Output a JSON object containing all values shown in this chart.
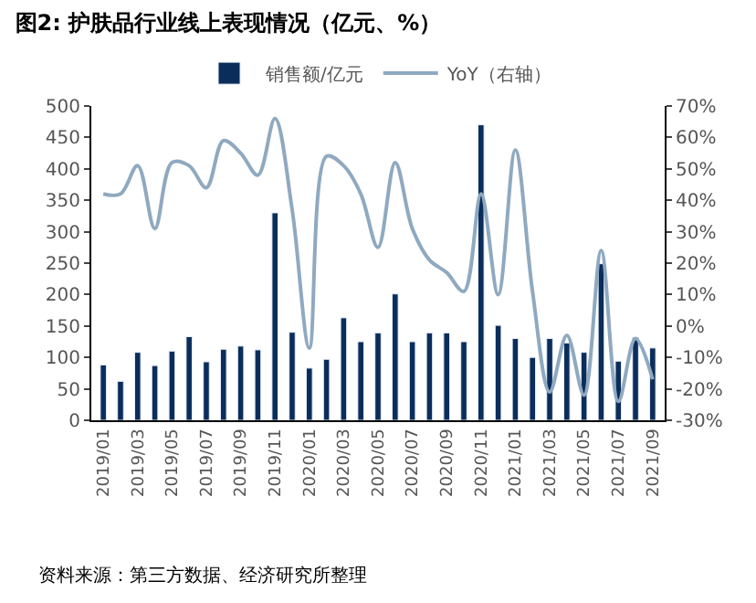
{
  "chart_data": {
    "type": "bar",
    "title": "图2: 护肤品行业线上表现情况（亿元、%）",
    "categories": [
      "2019/01",
      null,
      "2019/03",
      null,
      "2019/05",
      null,
      "2019/07",
      null,
      "2019/09",
      null,
      "2019/11",
      null,
      "2020/01",
      null,
      "2020/03",
      null,
      "2020/05",
      null,
      "2020/07",
      null,
      "2020/09",
      null,
      "2020/11",
      null,
      "2021/01",
      null,
      "2021/03",
      null,
      "2021/05",
      null,
      "2021/07",
      null,
      "2021/09"
    ],
    "series": [
      {
        "name": "销售额/亿元",
        "color": "#0b2d5b",
        "values": [
          88,
          62,
          108,
          87,
          110,
          133,
          93,
          113,
          118,
          112,
          330,
          140,
          83,
          97,
          163,
          125,
          139,
          201,
          125,
          139,
          139,
          125,
          470,
          151,
          130,
          100,
          130,
          123,
          108,
          249,
          94,
          132,
          115
        ]
      },
      {
        "name": "YoY（右轴）",
        "type": "line",
        "axis": "y2",
        "color": "#8fa9c0",
        "values": [
          42,
          42,
          51,
          31,
          52,
          51,
          44,
          59,
          55,
          48,
          66,
          37,
          -7,
          54,
          51,
          42,
          25,
          52,
          31,
          21,
          17,
          11,
          42,
          10,
          56,
          11,
          -21,
          -3,
          -22,
          24,
          -24,
          -4,
          -17
        ]
      }
    ],
    "ylim": [
      0,
      500
    ],
    "yticks": [
      0,
      50,
      100,
      150,
      200,
      250,
      300,
      350,
      400,
      450,
      500
    ],
    "y2lim": [
      -30,
      70
    ],
    "y2ticks": [
      {
        "value": -30,
        "label": "-30%"
      },
      {
        "value": -20,
        "label": "-20%"
      },
      {
        "value": -10,
        "label": "-10%"
      },
      {
        "value": 0,
        "label": "0%"
      },
      {
        "value": 10,
        "label": "10%"
      },
      {
        "value": 20,
        "label": "20%"
      },
      {
        "value": 30,
        "label": "30%"
      },
      {
        "value": 40,
        "label": "40%"
      },
      {
        "value": 50,
        "label": "50%"
      },
      {
        "value": 60,
        "label": "60%"
      },
      {
        "value": 70,
        "label": "70%"
      }
    ],
    "legend": "top",
    "annotations": [
      "资料来源：第三方数据、经济研究所整理"
    ]
  }
}
